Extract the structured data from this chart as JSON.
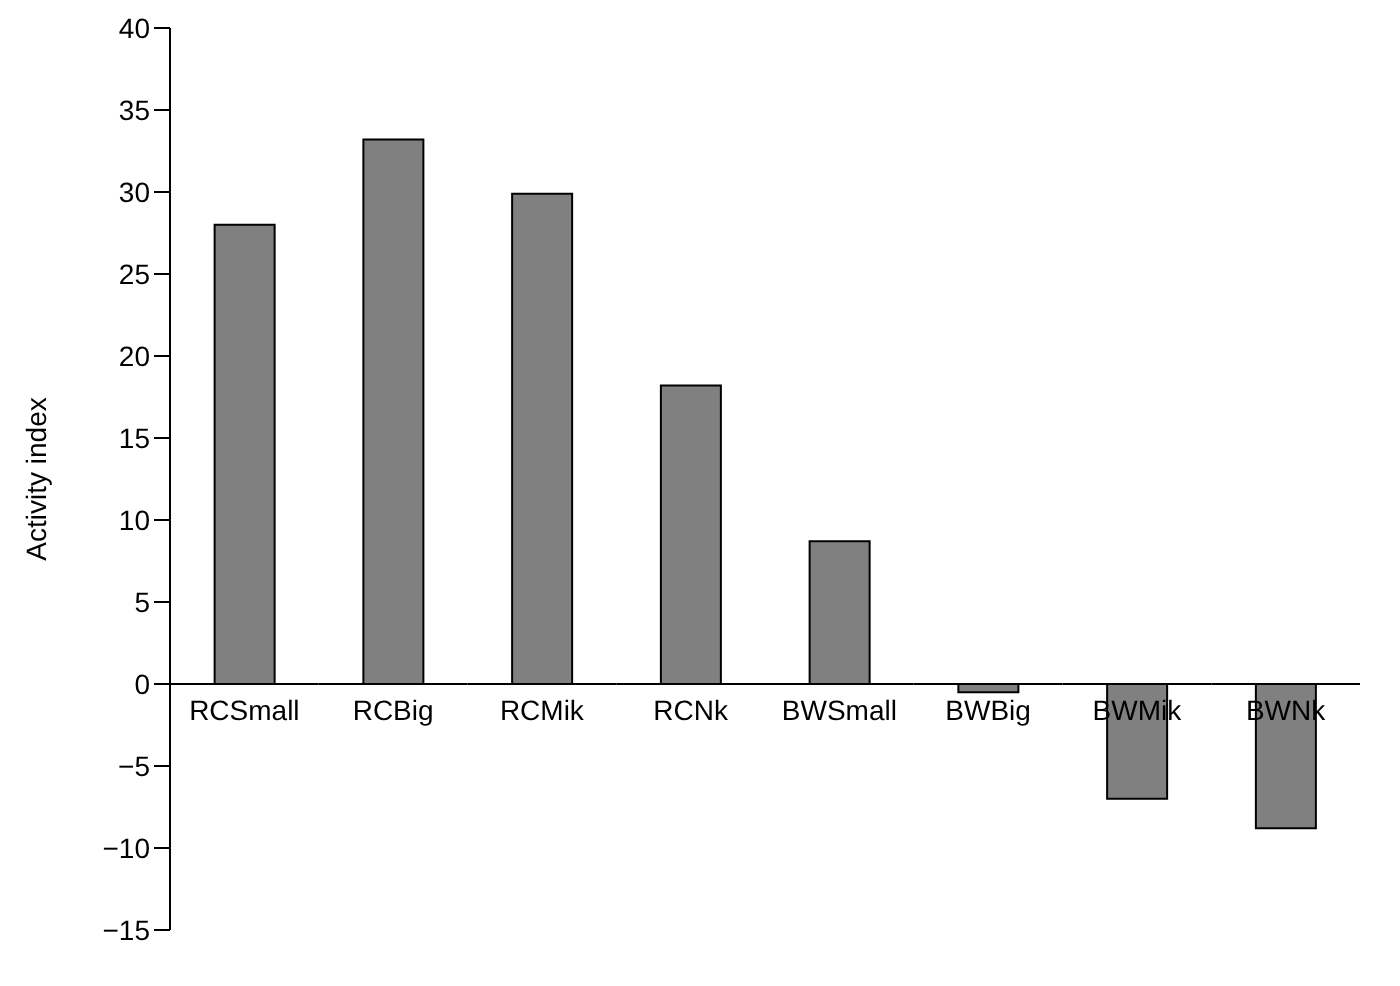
{
  "chart_data": {
    "type": "bar",
    "ylabel": "Activity index",
    "categories": [
      "RCSmall",
      "RCBig",
      "RCMik",
      "RCNk",
      "BWSmall",
      "BWBig",
      "BWMik",
      "BWNk"
    ],
    "values": [
      28,
      33.2,
      29.9,
      18.2,
      8.7,
      -0.5,
      -7,
      -8.8
    ],
    "color": "#808080",
    "ylim": [
      -15,
      40
    ],
    "yticks": [
      -15,
      -10,
      -5,
      0,
      5,
      10,
      15,
      20,
      25,
      30,
      35,
      40
    ],
    "grid": false,
    "legend": false
  }
}
